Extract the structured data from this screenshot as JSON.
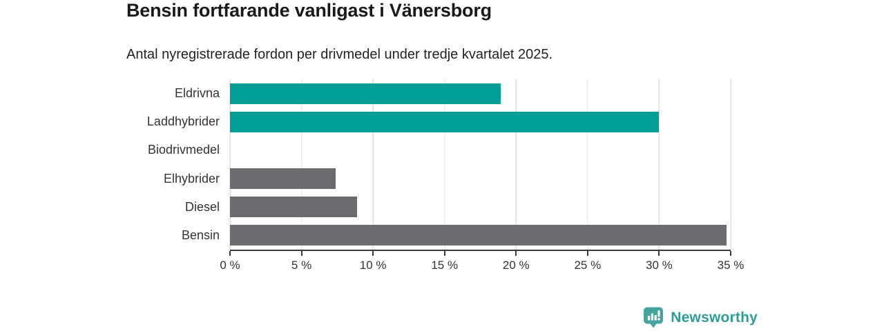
{
  "chart": {
    "title": "Bensin fortfarande vanligast i Vänersborg",
    "subtitle": "Antal nyregistrerade fordon per drivmedel under tredje kvartalet 2025."
  },
  "chart_data": {
    "type": "bar",
    "orientation": "horizontal",
    "title": "Bensin fortfarande vanligast i Vänersborg",
    "subtitle": "Antal nyregistrerade fordon per drivmedel under tredje kvartalet 2025.",
    "categories": [
      "Eldrivna",
      "Laddhybrider",
      "Biodrivmedel",
      "Elhybrider",
      "Diesel",
      "Bensin"
    ],
    "values": [
      18.9,
      30,
      0,
      7.4,
      8.9,
      34.7
    ],
    "unit": "%",
    "bar_colors": [
      "#009e96",
      "#009e96",
      "#009e96",
      "#6b6b70",
      "#6b6b70",
      "#6b6b70"
    ],
    "xlabel": "",
    "ylabel": "",
    "xlim": [
      0,
      35
    ],
    "x_ticks": [
      0,
      5,
      10,
      15,
      20,
      25,
      30,
      35
    ],
    "x_tick_labels": [
      "0 %",
      "5 %",
      "10 %",
      "15 %",
      "20 %",
      "25 %",
      "30 %",
      "35 %"
    ],
    "grid": "vertical-gridlines-on",
    "legend": "none"
  },
  "colors": {
    "teal_bar": "#009e96",
    "gray_bar": "#6b6b70",
    "gridline": "#e3e3e3",
    "axis": "#3b3b3b",
    "logo_teal": "#2f9d97",
    "logo_icon_teal": "#47a39d"
  },
  "logo": {
    "text": "Newsworthy",
    "icon": "newsworthy-bar-chart-bubble-icon"
  }
}
